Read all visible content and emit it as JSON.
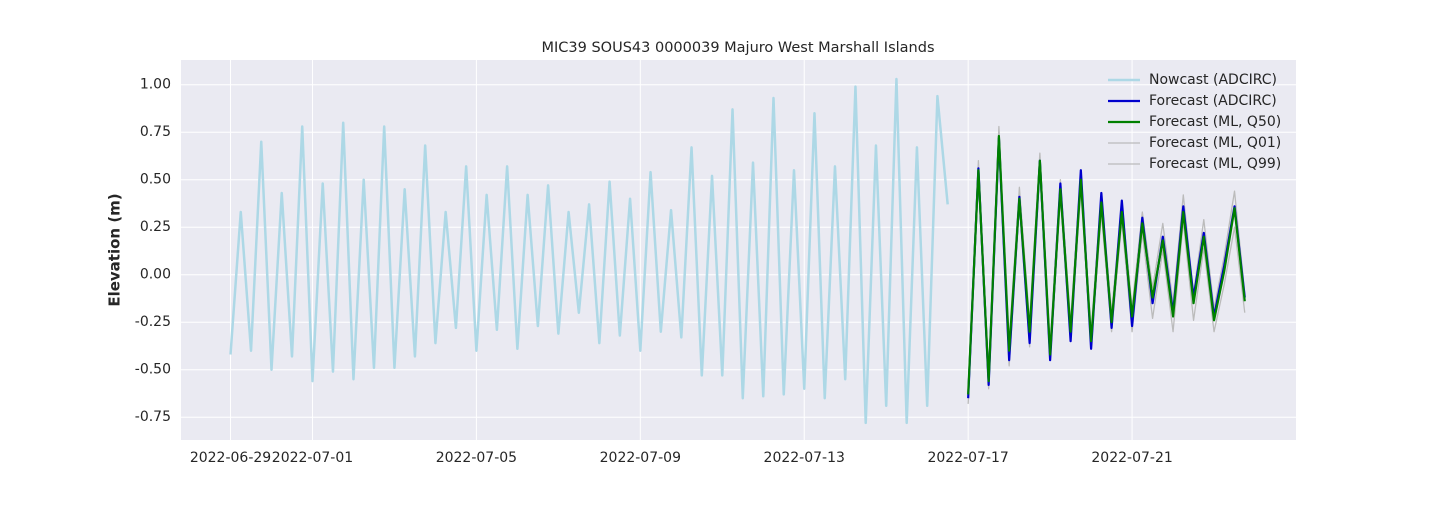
{
  "chart_data": {
    "type": "line",
    "title": "MIC39 SOUS43 0000039 Majuro West Marshall Islands",
    "ylabel": "Elevation (m)",
    "xlim": [
      "2022-06-27 19:00",
      "2022-07-25 00:00"
    ],
    "ylim": [
      -0.87,
      1.13
    ],
    "xticks": [
      "2022-06-29",
      "2022-07-01",
      "2022-07-05",
      "2022-07-09",
      "2022-07-13",
      "2022-07-17",
      "2022-07-21"
    ],
    "yticks": [
      -0.75,
      {
        "value": -0.5,
        "label": "-0.50"
      },
      -0.25,
      {
        "value": 0,
        "label": "0.00"
      },
      0.25,
      {
        "value": 0.5,
        "label": "0.50"
      },
      0.75,
      {
        "value": 1,
        "label": "1.00"
      }
    ],
    "grid": true,
    "legend": "upper right",
    "series": [
      {
        "name": "Nowcast (ADCIRC)",
        "color": "#add8e6",
        "width": 2.5,
        "x": [
          "2022-06-29 00:00",
          "2022-06-29 06:00",
          "2022-06-29 12:00",
          "2022-06-29 18:00",
          "2022-06-30 00:00",
          "2022-06-30 06:00",
          "2022-06-30 12:00",
          "2022-06-30 18:00",
          "2022-07-01 00:00",
          "2022-07-01 06:00",
          "2022-07-01 12:00",
          "2022-07-01 18:00",
          "2022-07-02 00:00",
          "2022-07-02 06:00",
          "2022-07-02 12:00",
          "2022-07-02 18:00",
          "2022-07-03 00:00",
          "2022-07-03 06:00",
          "2022-07-03 12:00",
          "2022-07-03 18:00",
          "2022-07-04 00:00",
          "2022-07-04 06:00",
          "2022-07-04 12:00",
          "2022-07-04 18:00",
          "2022-07-05 00:00",
          "2022-07-05 06:00",
          "2022-07-05 12:00",
          "2022-07-05 18:00",
          "2022-07-06 00:00",
          "2022-07-06 06:00",
          "2022-07-06 12:00",
          "2022-07-06 18:00",
          "2022-07-07 00:00",
          "2022-07-07 06:00",
          "2022-07-07 12:00",
          "2022-07-07 18:00",
          "2022-07-08 00:00",
          "2022-07-08 06:00",
          "2022-07-08 12:00",
          "2022-07-08 18:00",
          "2022-07-09 00:00",
          "2022-07-09 06:00",
          "2022-07-09 12:00",
          "2022-07-09 18:00",
          "2022-07-10 00:00",
          "2022-07-10 06:00",
          "2022-07-10 12:00",
          "2022-07-10 18:00",
          "2022-07-11 00:00",
          "2022-07-11 06:00",
          "2022-07-11 12:00",
          "2022-07-11 18:00",
          "2022-07-12 00:00",
          "2022-07-12 06:00",
          "2022-07-12 12:00",
          "2022-07-12 18:00",
          "2022-07-13 00:00",
          "2022-07-13 06:00",
          "2022-07-13 12:00",
          "2022-07-13 18:00",
          "2022-07-14 00:00",
          "2022-07-14 06:00",
          "2022-07-14 12:00",
          "2022-07-14 18:00",
          "2022-07-15 00:00",
          "2022-07-15 06:00",
          "2022-07-15 12:00",
          "2022-07-15 18:00",
          "2022-07-16 00:00",
          "2022-07-16 06:00",
          "2022-07-16 12:00"
        ],
        "values": [
          -0.42,
          0.33,
          -0.4,
          0.7,
          -0.5,
          0.43,
          -0.43,
          0.78,
          -0.56,
          0.48,
          -0.51,
          0.8,
          -0.55,
          0.5,
          -0.49,
          0.78,
          -0.49,
          0.45,
          -0.43,
          0.68,
          -0.36,
          0.33,
          -0.28,
          0.57,
          -0.4,
          0.42,
          -0.29,
          0.57,
          -0.39,
          0.42,
          -0.27,
          0.47,
          -0.31,
          0.33,
          -0.2,
          0.37,
          -0.36,
          0.49,
          -0.32,
          0.4,
          -0.4,
          0.54,
          -0.3,
          0.34,
          -0.33,
          0.67,
          -0.53,
          0.52,
          -0.53,
          0.87,
          -0.65,
          0.59,
          -0.64,
          0.93,
          -0.63,
          0.55,
          -0.6,
          0.85,
          -0.65,
          0.57,
          -0.55,
          0.99,
          -0.78,
          0.68,
          -0.69,
          1.03,
          -0.78,
          0.67,
          -0.69,
          0.94,
          0.37
        ]
      },
      {
        "name": "Forecast (ADCIRC)",
        "color": "#0000cd",
        "width": 2.2,
        "x": [
          "2022-07-17 00:00",
          "2022-07-17 06:00",
          "2022-07-17 12:00",
          "2022-07-17 18:00",
          "2022-07-18 00:00",
          "2022-07-18 06:00",
          "2022-07-18 12:00",
          "2022-07-18 18:00",
          "2022-07-19 00:00",
          "2022-07-19 06:00",
          "2022-07-19 12:00",
          "2022-07-19 18:00",
          "2022-07-20 00:00",
          "2022-07-20 06:00",
          "2022-07-20 12:00",
          "2022-07-20 18:00",
          "2022-07-21 00:00",
          "2022-07-21 06:00",
          "2022-07-21 12:00",
          "2022-07-21 18:00",
          "2022-07-22 00:00",
          "2022-07-22 06:00",
          "2022-07-22 12:00",
          "2022-07-22 18:00",
          "2022-07-23 00:00",
          "2022-07-23 06:00",
          "2022-07-23 12:00",
          "2022-07-23 18:00"
        ],
        "values": [
          -0.65,
          0.56,
          -0.58,
          0.72,
          -0.45,
          0.41,
          -0.36,
          0.6,
          -0.45,
          0.48,
          -0.35,
          0.55,
          -0.39,
          0.43,
          -0.28,
          0.39,
          -0.27,
          0.3,
          -0.15,
          0.2,
          -0.2,
          0.36,
          -0.12,
          0.22,
          -0.22,
          0.05,
          0.36,
          -0.12
        ]
      },
      {
        "name": "Forecast (ML, Q50)",
        "color": "#008000",
        "width": 2.2,
        "x": [
          "2022-07-17 00:00",
          "2022-07-17 06:00",
          "2022-07-17 12:00",
          "2022-07-17 18:00",
          "2022-07-18 00:00",
          "2022-07-18 06:00",
          "2022-07-18 12:00",
          "2022-07-18 18:00",
          "2022-07-19 00:00",
          "2022-07-19 06:00",
          "2022-07-19 12:00",
          "2022-07-19 18:00",
          "2022-07-20 00:00",
          "2022-07-20 06:00",
          "2022-07-20 12:00",
          "2022-07-20 18:00",
          "2022-07-21 00:00",
          "2022-07-21 06:00",
          "2022-07-21 12:00",
          "2022-07-21 18:00",
          "2022-07-22 00:00",
          "2022-07-22 06:00",
          "2022-07-22 12:00",
          "2022-07-22 18:00",
          "2022-07-23 00:00",
          "2022-07-23 06:00",
          "2022-07-23 12:00",
          "2022-07-23 18:00"
        ],
        "values": [
          -0.63,
          0.55,
          -0.56,
          0.73,
          -0.4,
          0.4,
          -0.3,
          0.6,
          -0.42,
          0.45,
          -0.3,
          0.5,
          -0.35,
          0.38,
          -0.25,
          0.33,
          -0.22,
          0.27,
          -0.12,
          0.18,
          -0.22,
          0.33,
          -0.15,
          0.2,
          -0.24,
          0.02,
          0.35,
          -0.14
        ]
      },
      {
        "name": "Forecast (ML, Q01)",
        "color": "#bbbbbb",
        "width": 1.3,
        "x": [
          "2022-07-17 00:00",
          "2022-07-17 06:00",
          "2022-07-17 12:00",
          "2022-07-17 18:00",
          "2022-07-18 00:00",
          "2022-07-18 06:00",
          "2022-07-18 12:00",
          "2022-07-18 18:00",
          "2022-07-19 00:00",
          "2022-07-19 06:00",
          "2022-07-19 12:00",
          "2022-07-19 18:00",
          "2022-07-20 00:00",
          "2022-07-20 06:00",
          "2022-07-20 12:00",
          "2022-07-20 18:00",
          "2022-07-21 00:00",
          "2022-07-21 06:00",
          "2022-07-21 12:00",
          "2022-07-21 18:00",
          "2022-07-22 00:00",
          "2022-07-22 06:00",
          "2022-07-22 12:00",
          "2022-07-22 18:00",
          "2022-07-23 00:00",
          "2022-07-23 06:00",
          "2022-07-23 12:00",
          "2022-07-23 18:00"
        ],
        "values": [
          -0.68,
          0.5,
          -0.6,
          0.68,
          -0.48,
          0.36,
          -0.38,
          0.55,
          -0.45,
          0.4,
          -0.35,
          0.45,
          -0.38,
          0.32,
          -0.3,
          0.28,
          -0.3,
          0.22,
          -0.23,
          0.13,
          -0.3,
          0.28,
          -0.24,
          0.14,
          -0.3,
          -0.05,
          0.25,
          -0.2
        ]
      },
      {
        "name": "Forecast (ML, Q99)",
        "color": "#bbbbbb",
        "width": 1.3,
        "x": [
          "2022-07-17 00:00",
          "2022-07-17 06:00",
          "2022-07-17 12:00",
          "2022-07-17 18:00",
          "2022-07-18 00:00",
          "2022-07-18 06:00",
          "2022-07-18 12:00",
          "2022-07-18 18:00",
          "2022-07-19 00:00",
          "2022-07-19 06:00",
          "2022-07-19 12:00",
          "2022-07-19 18:00",
          "2022-07-20 00:00",
          "2022-07-20 06:00",
          "2022-07-20 12:00",
          "2022-07-20 18:00",
          "2022-07-21 00:00",
          "2022-07-21 06:00",
          "2022-07-21 12:00",
          "2022-07-21 18:00",
          "2022-07-22 00:00",
          "2022-07-22 06:00",
          "2022-07-22 12:00",
          "2022-07-22 18:00",
          "2022-07-23 00:00",
          "2022-07-23 06:00",
          "2022-07-23 12:00",
          "2022-07-23 18:00"
        ],
        "values": [
          -0.6,
          0.6,
          -0.52,
          0.78,
          -0.35,
          0.46,
          -0.25,
          0.64,
          -0.36,
          0.5,
          -0.25,
          0.55,
          -0.3,
          0.43,
          -0.2,
          0.38,
          -0.17,
          0.33,
          -0.07,
          0.27,
          -0.15,
          0.42,
          -0.1,
          0.29,
          -0.18,
          0.1,
          0.44,
          -0.1
        ]
      }
    ]
  }
}
